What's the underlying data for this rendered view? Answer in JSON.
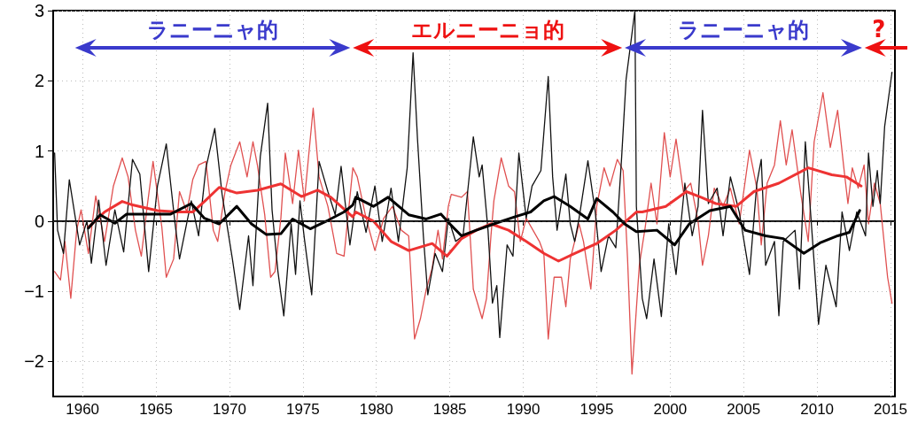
{
  "chart_data": {
    "type": "line",
    "xlim": [
      1958,
      2015.3
    ],
    "xticks": [
      1960,
      1965,
      1970,
      1975,
      1980,
      1985,
      1990,
      1995,
      2000,
      2005,
      2010,
      2015
    ],
    "ylim": [
      -2.5,
      3
    ],
    "yticks": [
      -2,
      -1,
      0,
      1,
      2,
      3
    ],
    "grid": true,
    "marker": "none",
    "line_style": "solid",
    "ref_lines": [
      {
        "axis": "y",
        "value": 0,
        "color": "#333333",
        "line_style": "dashed"
      }
    ],
    "annotations": [
      "ラニーニャ的",
      "エルニーニョ的",
      "ラニーニャ的",
      "?"
    ],
    "series": [
      {
        "color": "#e05050",
        "x": [
          1958.1,
          1958.5,
          1958.8,
          1959.2,
          1959.6,
          1959.9,
          1960.4,
          1960.9,
          1961.5,
          1962.1,
          1962.7,
          1963.1,
          1963.6,
          1964.0,
          1964.4,
          1964.8,
          1965.4,
          1965.7,
          1966.2,
          1966.6,
          1967.1,
          1967.5,
          1967.9,
          1968.4,
          1968.9,
          1969.2,
          1969.7,
          1970.1,
          1970.7,
          1971.2,
          1971.6,
          1971.9,
          1972.4,
          1972.8,
          1973.1,
          1973.5,
          1973.8,
          1974.3,
          1974.7,
          1975.1,
          1975.7,
          1976.1,
          1976.7,
          1977.3,
          1977.8,
          1978.4,
          1978.7,
          1979.3,
          1979.9,
          1980.5,
          1981.1,
          1981.7,
          1982.2,
          1982.6,
          1983.0,
          1983.4,
          1983.8,
          1984.2,
          1984.5,
          1984.9,
          1985.1,
          1985.8,
          1986.2,
          1986.6,
          1987.2,
          1987.5,
          1987.8,
          1988.0,
          1988.5,
          1989.0,
          1989.4,
          1989.8,
          1990.2,
          1991.1,
          1991.4,
          1991.7,
          1992.1,
          1992.6,
          1992.9,
          1993.2,
          1993.8,
          1994.1,
          1994.6,
          1995.0,
          1995.5,
          1995.9,
          1996.4,
          1996.8,
          1997.1,
          1997.4,
          1997.9,
          1998.3,
          1998.7,
          1999.1,
          1999.6,
          2000.0,
          2000.4,
          2000.9,
          2001.4,
          2001.9,
          2002.2,
          2002.6,
          2003.0,
          2003.6,
          2004.1,
          2004.7,
          2005.4,
          2005.9,
          2006.2,
          2006.6,
          2007.1,
          2007.5,
          2007.9,
          2008.3,
          2008.9,
          2009.4,
          2009.8,
          2010.4,
          2010.9,
          2011.4,
          2011.8,
          2012.1,
          2012.4,
          2012.8,
          2013.2,
          2013.5,
          2013.9,
          2014.3,
          2014.8,
          2015.1
        ],
        "values": [
          -0.72,
          -0.84,
          -0.29,
          -1.1,
          -0.13,
          0.16,
          -0.46,
          0.36,
          -0.29,
          0.5,
          0.9,
          0.63,
          -0.13,
          -0.5,
          0.21,
          0.85,
          -0.09,
          -0.8,
          -0.54,
          0.42,
          0.13,
          0.59,
          0.8,
          0.85,
          -0.13,
          -0.29,
          0.42,
          0.8,
          1.13,
          0.63,
          1.13,
          0.8,
          0.09,
          -0.8,
          -0.72,
          0.04,
          0.97,
          0.25,
          1.01,
          0.29,
          1.61,
          0.63,
          0.21,
          -0.46,
          -0.5,
          0.76,
          0.63,
          0.04,
          -0.42,
          0.04,
          0.21,
          -0.13,
          -0.21,
          -1.68,
          -1.39,
          -0.97,
          -0.67,
          -0.13,
          -0.54,
          0.21,
          0.38,
          0.34,
          0.42,
          -0.97,
          -1.39,
          -1.1,
          -0.21,
          0.29,
          0.9,
          0.5,
          0.42,
          -0.29,
          0.04,
          -0.29,
          -0.46,
          -1.68,
          -0.8,
          -0.8,
          -1.22,
          -0.54,
          -0.04,
          -0.29,
          -0.97,
          0.21,
          0.76,
          0.5,
          0.88,
          0.72,
          -0.54,
          -2.18,
          -0.63,
          -0.09,
          0.54,
          -0.04,
          1.26,
          0.63,
          1.17,
          0.42,
          0.54,
          0,
          -0.63,
          -0.21,
          0.47,
          0.21,
          0.47,
          -0.04,
          1.01,
          0.47,
          -0.34,
          0.54,
          0.8,
          1.43,
          0.8,
          1.3,
          0.38,
          -0.29,
          1.13,
          1.83,
          1.05,
          1.58,
          0.8,
          0.25,
          0.76,
          0.47,
          0.8,
          -0.04,
          0.54,
          0.25,
          -0.8,
          -1.17
        ]
      },
      {
        "color": "#111111",
        "x": [
          1958.1,
          1958.3,
          1958.7,
          1959.1,
          1959.8,
          1960.3,
          1960.6,
          1961.1,
          1961.6,
          1962.2,
          1962.8,
          1963.4,
          1963.9,
          1964.5,
          1965.1,
          1965.7,
          1966.3,
          1966.6,
          1967.4,
          1967.9,
          1968.4,
          1969.0,
          1969.5,
          1970.2,
          1970.7,
          1971.3,
          1971.6,
          1972.1,
          1972.6,
          1972.9,
          1973.3,
          1973.7,
          1974.2,
          1974.5,
          1974.8,
          1975.1,
          1975.6,
          1976.1,
          1976.7,
          1977.2,
          1977.6,
          1978.2,
          1978.7,
          1979.3,
          1979.9,
          1980.4,
          1981.0,
          1981.5,
          1982.1,
          1982.5,
          1982.8,
          1983.2,
          1983.5,
          1984.0,
          1984.5,
          1984.9,
          1985.4,
          1985.9,
          1986.3,
          1986.6,
          1987.0,
          1987.2,
          1987.6,
          1987.9,
          1988.2,
          1988.4,
          1988.9,
          1989.3,
          1989.7,
          1990.2,
          1990.6,
          1991.2,
          1991.7,
          1992.0,
          1992.3,
          1992.9,
          1993.2,
          1993.5,
          1993.8,
          1994.4,
          1994.9,
          1995.3,
          1995.8,
          1996.3,
          1996.7,
          1997.0,
          1997.6,
          1997.7,
          1998.1,
          1998.4,
          1998.9,
          1999.4,
          1999.9,
          2000.4,
          2001.0,
          2001.5,
          2001.9,
          2002.2,
          2002.6,
          2003.2,
          2003.6,
          2004.1,
          2004.7,
          2005.4,
          2005.9,
          2006.2,
          2006.5,
          2007.1,
          2007.4,
          2007.7,
          2008.5,
          2008.8,
          2009.2,
          2009.5,
          2010.1,
          2010.6,
          2011.3,
          2011.7,
          2012.2,
          2012.7,
          2013.3,
          2013.5,
          2013.8,
          2014.1,
          2014.3,
          2014.6,
          2015.1
        ],
        "values": [
          0.97,
          -0.13,
          -0.46,
          0.59,
          -0.34,
          0,
          -0.6,
          0.3,
          -0.63,
          0.16,
          -0.44,
          0.88,
          0.67,
          -0.72,
          0.5,
          1.1,
          -0.04,
          -0.54,
          0.29,
          -0.21,
          0.76,
          1.32,
          0.38,
          -0.54,
          -1.26,
          -0.21,
          -0.92,
          0.92,
          1.68,
          0.16,
          -0.72,
          -1.35,
          -0.04,
          -0.76,
          0.29,
          -0.25,
          -1.05,
          0.85,
          0.42,
          0.09,
          0.78,
          -0.34,
          0.42,
          -0.16,
          0.5,
          -0.29,
          0.47,
          -0.29,
          0.76,
          2.4,
          1.17,
          -0.21,
          -1.05,
          -0.46,
          -0.72,
          0.04,
          -0.29,
          -0.21,
          0.59,
          1.2,
          0.63,
          0.8,
          -0.13,
          -1.17,
          -0.92,
          -1.66,
          -0.34,
          -0.5,
          0.97,
          0.04,
          0.5,
          0.72,
          2.06,
          0.63,
          -0.13,
          0.67,
          -0.04,
          -0.29,
          0.04,
          0.86,
          0.13,
          -0.72,
          -0.21,
          -0.38,
          0.92,
          2.02,
          3.0,
          0.21,
          -1.1,
          -1.39,
          -0.54,
          -1.36,
          -0.04,
          -0.76,
          0.54,
          -0.21,
          0.21,
          1.58,
          0.25,
          0.47,
          -0.21,
          0.63,
          0.13,
          -0.76,
          0.54,
          0.88,
          -0.63,
          -0.29,
          -1.35,
          -0.29,
          -0.13,
          -0.97,
          1.13,
          0.29,
          -1.47,
          -0.63,
          -1.22,
          0.13,
          -0.42,
          0.13,
          -0.21,
          0.97,
          0.21,
          0.72,
          0.25,
          1.35,
          2.12
        ]
      },
      {
        "color": "#ee3333",
        "x": [
          1960.4,
          1961.5,
          1962.7,
          1963.4,
          1965.1,
          1966.5,
          1967.5,
          1968.3,
          1969.3,
          1970.5,
          1971.9,
          1973.5,
          1974.9,
          1976.0,
          1976.9,
          1978.4,
          1978.6,
          1979.8,
          1981.0,
          1982.2,
          1983.8,
          1984.8,
          1985.8,
          1986.8,
          1987.8,
          1989.0,
          1990.2,
          1991.4,
          1992.4,
          1993.5,
          1995.0,
          1996.3,
          1997.7,
          1998.1,
          1999.7,
          2001.1,
          2002.1,
          2003.1,
          2004.5,
          2005.7,
          2007.4,
          2009.4,
          2011.0,
          2012.0,
          2013.0
        ],
        "values": [
          -0.09,
          0.13,
          0.28,
          0.23,
          0.15,
          0.13,
          0.13,
          0.28,
          0.48,
          0.4,
          0.44,
          0.53,
          0.35,
          0.44,
          0.34,
          0.06,
          0.13,
          0,
          -0.29,
          -0.42,
          -0.32,
          -0.5,
          -0.25,
          -0.13,
          -0.04,
          -0.13,
          -0.29,
          -0.46,
          -0.57,
          -0.46,
          -0.32,
          -0.13,
          0.13,
          0.13,
          0.21,
          0.42,
          0.34,
          0.25,
          0.21,
          0.42,
          0.54,
          0.76,
          0.66,
          0.63,
          0.5
        ]
      },
      {
        "color": "#000000",
        "x": [
          1960.4,
          1961.2,
          1962.2,
          1963.0,
          1964.5,
          1966.0,
          1967.4,
          1968.3,
          1969.3,
          1970.5,
          1971.5,
          1972.5,
          1973.5,
          1974.3,
          1975.5,
          1976.7,
          1977.8,
          1978.4,
          1978.6,
          1979.8,
          1980.8,
          1982.2,
          1983.4,
          1984.4,
          1985.0,
          1985.8,
          1986.8,
          1988.0,
          1989.4,
          1990.5,
          1991.4,
          1992.1,
          1993.2,
          1994.4,
          1995.0,
          1996.1,
          1996.9,
          1997.7,
          1999.1,
          2000.3,
          2001.3,
          2002.7,
          2004.1,
          2005.1,
          2006.5,
          2007.7,
          2009.1,
          2010.2,
          2011.4,
          2012.2,
          2012.9
        ],
        "values": [
          -0.1,
          0.09,
          -0.03,
          0.1,
          0.1,
          0.1,
          0.25,
          0.04,
          -0.04,
          0.21,
          -0.04,
          -0.19,
          -0.18,
          0.03,
          -0.11,
          0.01,
          0.13,
          0.23,
          0.34,
          0.21,
          0.34,
          0.09,
          0.03,
          0.1,
          -0.04,
          -0.21,
          -0.13,
          -0.04,
          0.06,
          0.13,
          0.29,
          0.35,
          0.21,
          0.03,
          0.32,
          0.13,
          -0.04,
          -0.15,
          -0.13,
          -0.34,
          -0.04,
          0.15,
          0.21,
          -0.13,
          -0.21,
          -0.25,
          -0.46,
          -0.31,
          -0.21,
          -0.16,
          0.15
        ]
      }
    ]
  }
}
